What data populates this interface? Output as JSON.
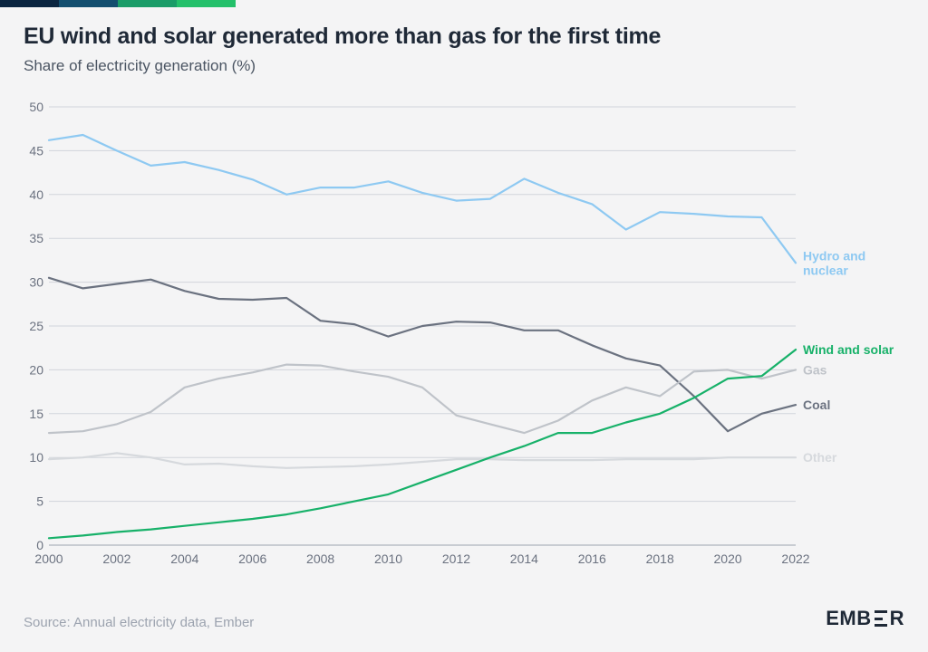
{
  "title": "EU wind and solar generated more than gas for the first time",
  "subtitle": "Share of electricity generation (%)",
  "source": "Source: Annual electricity data, Ember",
  "logo_text_before": "EMB",
  "logo_text_after": "R",
  "chart": {
    "type": "line",
    "background_color": "#f4f4f5",
    "grid_color": "#d1d5db",
    "axis_color": "#9ca3af",
    "tick_fontsize": 14,
    "label_fontsize": 14,
    "x": {
      "min": 2000,
      "max": 2022,
      "ticks": [
        2000,
        2002,
        2004,
        2006,
        2008,
        2010,
        2012,
        2014,
        2016,
        2018,
        2020,
        2022
      ]
    },
    "y": {
      "min": 0,
      "max": 50,
      "ticks": [
        0,
        5,
        10,
        15,
        20,
        25,
        30,
        35,
        40,
        45,
        50
      ]
    },
    "line_width": 2.2,
    "series": [
      {
        "name": "Hydro and nuclear",
        "color": "#8ec9f2",
        "label_weight": 400,
        "label_lines": [
          "Hydro and",
          "nuclear"
        ],
        "values": [
          46.2,
          46.8,
          45.0,
          43.3,
          43.7,
          42.8,
          41.7,
          40.0,
          40.8,
          40.8,
          41.5,
          40.2,
          39.3,
          39.5,
          41.8,
          40.2,
          38.9,
          36.0,
          38.0,
          37.8,
          37.5,
          37.4,
          32.2
        ]
      },
      {
        "name": "Coal",
        "color": "#6b7280",
        "label_weight": 600,
        "label_lines": [
          "Coal"
        ],
        "values": [
          30.5,
          29.3,
          29.8,
          30.3,
          29.0,
          28.1,
          28.0,
          28.2,
          25.6,
          25.2,
          23.8,
          25.0,
          25.5,
          25.4,
          24.5,
          24.5,
          22.8,
          21.3,
          20.5,
          17.0,
          13.0,
          15.0,
          16.0
        ]
      },
      {
        "name": "Gas",
        "color": "#bfc3c9",
        "label_weight": 400,
        "label_lines": [
          "Gas"
        ],
        "values": [
          12.8,
          13.0,
          13.8,
          15.2,
          18.0,
          19.0,
          19.7,
          20.6,
          20.5,
          19.8,
          19.2,
          18.0,
          14.8,
          13.8,
          12.8,
          14.2,
          16.5,
          18.0,
          17.0,
          19.8,
          20.0,
          19.0,
          20.0
        ]
      },
      {
        "name": "Other",
        "color": "#d6d9dd",
        "label_weight": 400,
        "label_lines": [
          "Other"
        ],
        "values": [
          9.8,
          10.0,
          10.5,
          10.0,
          9.2,
          9.3,
          9.0,
          8.8,
          8.9,
          9.0,
          9.2,
          9.5,
          9.8,
          9.8,
          9.7,
          9.7,
          9.7,
          9.8,
          9.8,
          9.8,
          10.0,
          10.0,
          10.0
        ]
      },
      {
        "name": "Wind and solar",
        "color": "#17b169",
        "label_weight": 700,
        "label_lines": [
          "Wind and solar"
        ],
        "values": [
          0.8,
          1.1,
          1.5,
          1.8,
          2.2,
          2.6,
          3.0,
          3.5,
          4.2,
          5.0,
          5.8,
          7.2,
          8.6,
          10.0,
          11.3,
          12.8,
          12.8,
          14.0,
          15.0,
          16.8,
          19.0,
          19.3,
          22.3
        ]
      }
    ]
  }
}
